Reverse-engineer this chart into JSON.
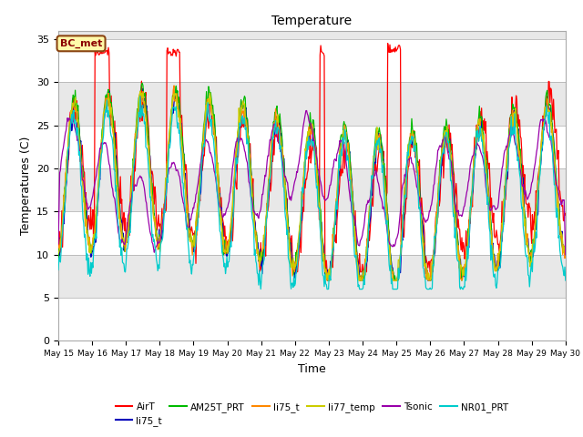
{
  "title": "Temperature",
  "xlabel": "Time",
  "ylabel": "Temperatures (C)",
  "ylim": [
    0,
    36
  ],
  "yticks": [
    0,
    5,
    10,
    15,
    20,
    25,
    30,
    35
  ],
  "annotation_text": "BC_met",
  "legend_labels": [
    "AirT",
    "li75_t",
    "AM25T_PRT",
    "li75_t",
    "li77_temp",
    "Tsonic",
    "NR01_PRT"
  ],
  "legend_colors": [
    "#FF0000",
    "#0000BB",
    "#00BB00",
    "#FF8800",
    "#CCCC00",
    "#9900AA",
    "#00CCCC"
  ],
  "plot_bg_color": "#E8E8E8",
  "grid_color": "#FFFFFF",
  "band_color": "#DCDCDC",
  "fig_bg": "#FFFFFF",
  "n_days": 15,
  "n_per_day": 48
}
